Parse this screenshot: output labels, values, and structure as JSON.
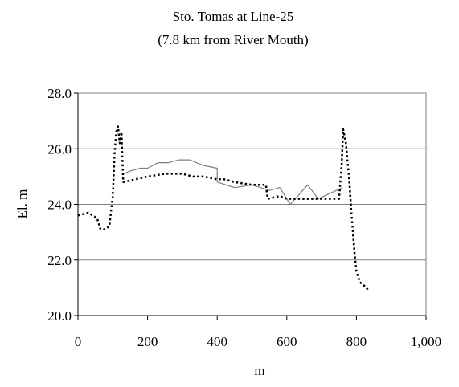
{
  "chart_data": {
    "type": "line",
    "title": "Sto. Tomas at Line-25",
    "subtitle": "(7.8 km from River Mouth)",
    "xlabel": "m",
    "ylabel": "El. m",
    "xlim": [
      0,
      1000
    ],
    "ylim": [
      20,
      28
    ],
    "x_ticks": [
      0,
      200,
      400,
      600,
      800,
      1000
    ],
    "x_tick_labels": [
      "0",
      "200",
      "400",
      "600",
      "800",
      "1,000"
    ],
    "y_ticks": [
      20,
      22,
      24,
      26,
      28
    ],
    "y_tick_labels": [
      "20.0",
      "22.0",
      "24.0",
      "26.0",
      "28.0"
    ],
    "grid": "horizontal",
    "legend": "none",
    "series": [
      {
        "style": "solid",
        "color": "#7f7f7f",
        "x": [
          130,
          150,
          180,
          200,
          230,
          260,
          290,
          320,
          360,
          400,
          400,
          450,
          500,
          550,
          580,
          610,
          660,
          690,
          760
        ],
        "y": [
          25.1,
          25.2,
          25.3,
          25.3,
          25.5,
          25.5,
          25.6,
          25.6,
          25.4,
          25.3,
          24.8,
          24.6,
          24.7,
          24.5,
          24.6,
          24.0,
          24.7,
          24.2,
          24.6
        ]
      },
      {
        "style": "dotted",
        "color": "#000000",
        "x": [
          0,
          30,
          55,
          65,
          75,
          90,
          100,
          105,
          110,
          115,
          120,
          125,
          130,
          200,
          250,
          300,
          330,
          360,
          400,
          420,
          450,
          500,
          540,
          545,
          580,
          600,
          650,
          700,
          750,
          758,
          762,
          770,
          780,
          785,
          795,
          800,
          810,
          820,
          835
        ],
        "y": [
          23.6,
          23.7,
          23.5,
          23.1,
          23.1,
          23.2,
          24.3,
          25.8,
          26.6,
          26.8,
          26.2,
          26.6,
          24.8,
          25.0,
          25.1,
          25.1,
          25.0,
          25.0,
          24.9,
          24.9,
          24.8,
          24.7,
          24.7,
          24.2,
          24.3,
          24.2,
          24.2,
          24.2,
          24.2,
          25.5,
          26.7,
          26.2,
          24.8,
          23.8,
          22.2,
          21.6,
          21.2,
          21.1,
          20.9
        ]
      }
    ]
  }
}
